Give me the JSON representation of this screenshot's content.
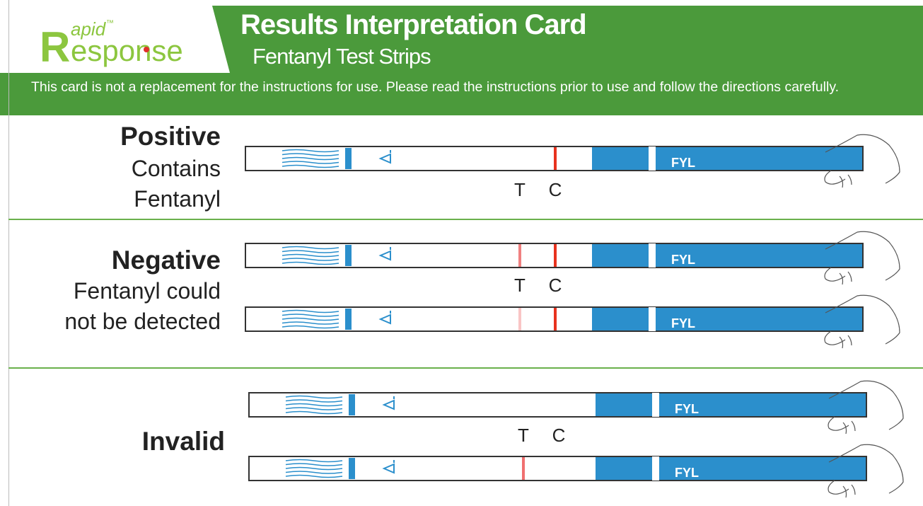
{
  "logo": {
    "initial": "R",
    "small": "apid",
    "trademark": "™",
    "rest": "esponse"
  },
  "header": {
    "title": "Results Interpretation Card",
    "subtitle": "Fentanyl Test Strips"
  },
  "notice": "This card is not a replacement for the instructions for use. Please read the instructions prior to use and follow the directions carefully.",
  "sections": [
    {
      "heading": "Positive",
      "description": [
        "Contains",
        "Fentanyl"
      ],
      "t_label": "T",
      "c_label": "C",
      "strips": [
        {
          "label": "FYL"
        }
      ]
    },
    {
      "heading": "Negative",
      "description": [
        "Fentanyl could",
        "not be detected"
      ],
      "t_label": "T",
      "c_label": "C",
      "strips": [
        {
          "label": "FYL"
        },
        {
          "label": "FYL"
        }
      ]
    },
    {
      "heading": "Invalid",
      "t_label": "T",
      "c_label": "C",
      "strips": [
        {
          "label": "FYL"
        },
        {
          "label": "FYL"
        }
      ]
    }
  ]
}
